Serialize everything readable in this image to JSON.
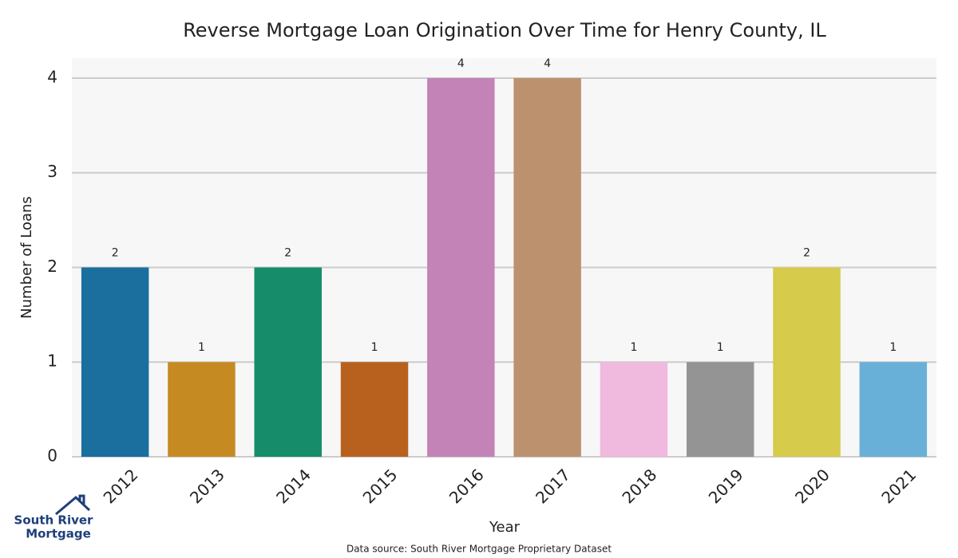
{
  "chart_data": {
    "type": "bar",
    "title": "Reverse Mortgage Loan Origination Over Time for Henry County, IL",
    "x_label": "Year",
    "y_label": "Number of Loans",
    "categories": [
      "2012",
      "2013",
      "2014",
      "2015",
      "2016",
      "2017",
      "2018",
      "2019",
      "2020",
      "2021"
    ],
    "values": [
      2,
      1,
      2,
      1,
      4,
      4,
      1,
      1,
      2,
      1
    ],
    "colors": [
      "#1a6f9f",
      "#c58a22",
      "#168c6b",
      "#b8611e",
      "#c383b6",
      "#bc926e",
      "#f0b9de",
      "#949494",
      "#d6cb4b",
      "#69b0d8"
    ],
    "ylim": [
      0,
      4.21
    ],
    "yticks": [
      0,
      1,
      2,
      3,
      4
    ],
    "grid": true,
    "source": "Data source: South River Mortgage Proprietary Dataset",
    "logo": [
      "South River",
      "Mortgage"
    ]
  }
}
